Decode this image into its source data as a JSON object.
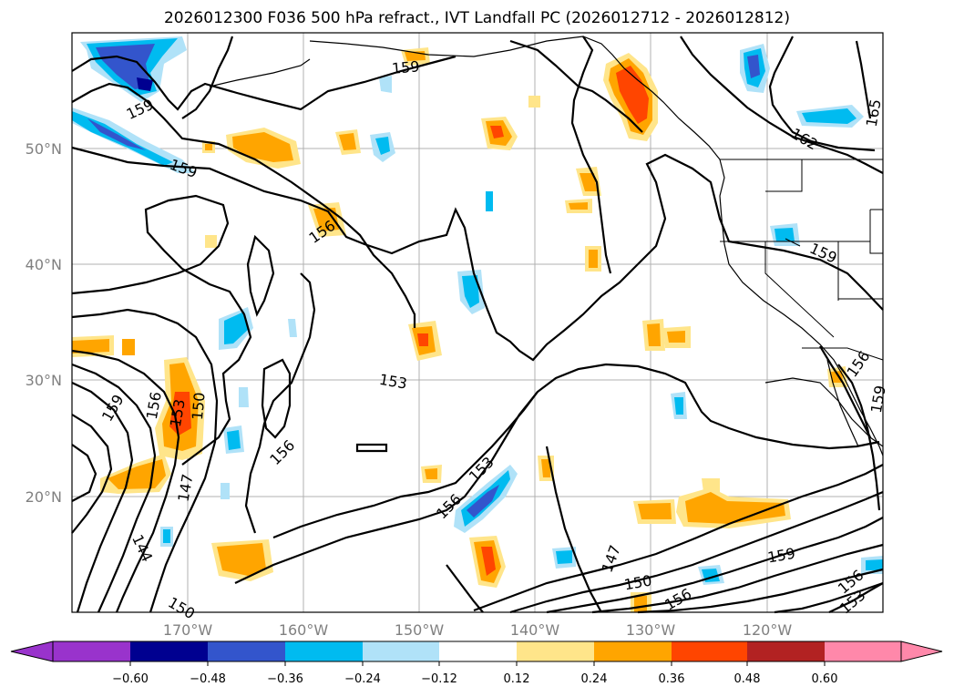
{
  "title": "2026012300 F036 500 hPa refract., IVT Landfall PC (2026012712 - 2026012812)",
  "lat_labels": [
    "50°N",
    "40°N",
    "30°N",
    "20°N"
  ],
  "lon_labels": [
    "170°W",
    "160°W",
    "150°W",
    "140°W",
    "130°W",
    "120°W"
  ],
  "contour_labels": [
    "159",
    "159",
    "159",
    "156",
    "153",
    "156",
    "159",
    "156",
    "150",
    "153",
    "147",
    "144",
    "150",
    "156",
    "153",
    "147",
    "150",
    "156",
    "159",
    "162",
    "165",
    "159",
    "156",
    "159",
    "156",
    "153"
  ],
  "colorbar": {
    "ticks": [
      "−0.60",
      "−0.48",
      "−0.36",
      "−0.24",
      "−0.12",
      "0.12",
      "0.24",
      "0.36",
      "0.48",
      "0.60"
    ],
    "colors": {
      "under": "#9933cc",
      "lt_-0.48": "#000090",
      "lt_-0.36": "#3355cc",
      "lt_-0.24": "#00bbf0",
      "lt_-0.12": "#b0e2f8",
      "neutral": "#ffffff",
      "lt_0.24": "#ffe58a",
      "lt_0.36": "#ffa500",
      "lt_0.48": "#ff4500",
      "lt_0.60": "#b22222",
      "over": "#ff88aa"
    }
  }
}
